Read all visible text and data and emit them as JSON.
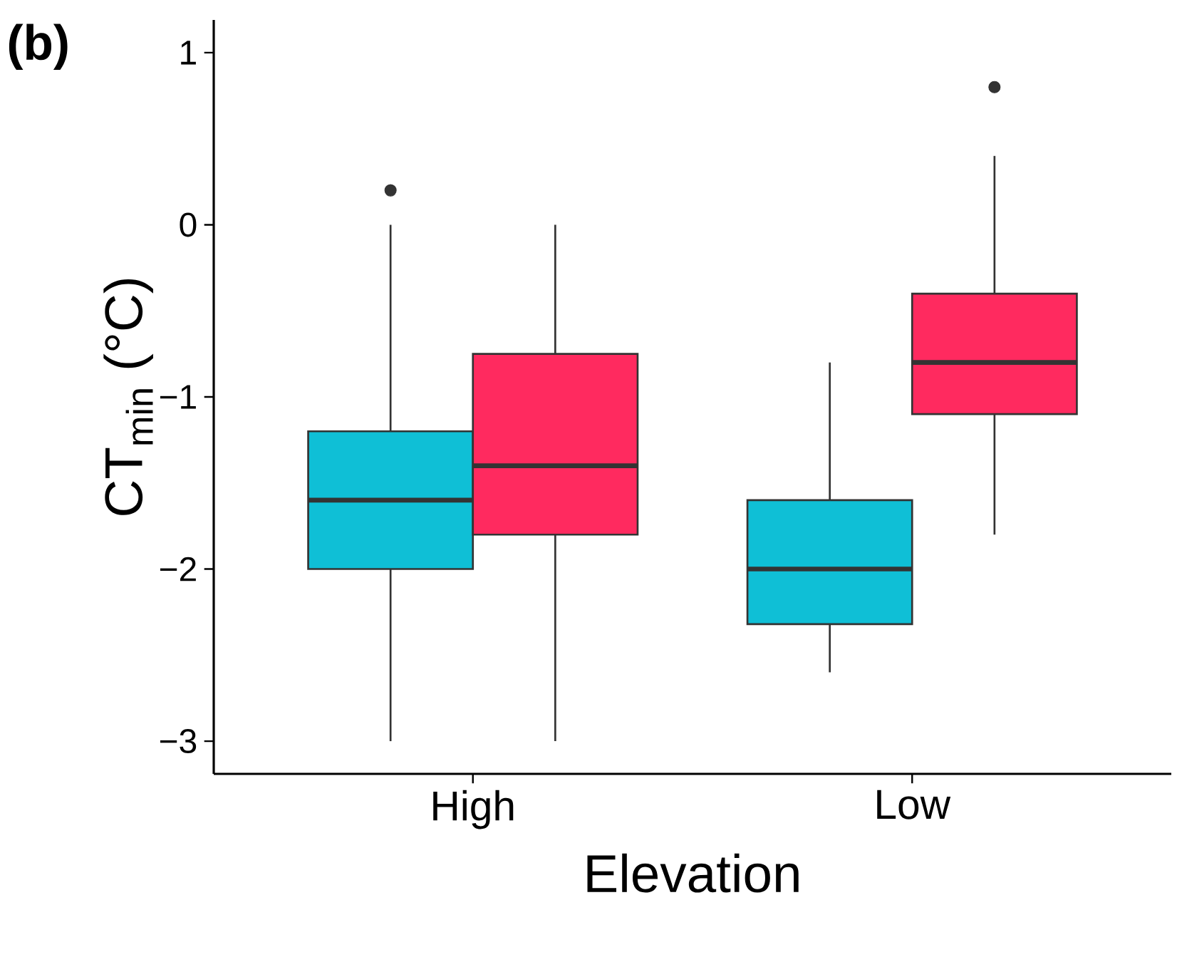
{
  "chart_data": {
    "type": "box",
    "title": "(b)",
    "xlabel": "Elevation",
    "ylabel": "CT$_{min}$ (°C)",
    "categories": [
      "High",
      "Low"
    ],
    "ylim": [
      -3.19,
      1.19
    ],
    "yticks": [
      {
        "value": -3,
        "label": "−3"
      },
      {
        "value": -2,
        "label": "−2"
      },
      {
        "value": -1,
        "label": "−1"
      },
      0,
      1
    ],
    "series": [
      {
        "color": "#0fbfd6",
        "boxes": [
          {
            "low": -3,
            "q1": -2.0,
            "median": -1.6,
            "q3": -1.2,
            "high": 0,
            "outliers": [
              0.2
            ]
          },
          {
            "low": -2.6,
            "q1": -2.32,
            "median": -2.0,
            "q3": -1.6,
            "high": -0.8
          }
        ]
      },
      {
        "color": "#ff2a5f",
        "boxes": [
          {
            "low": -3,
            "q1": -1.8,
            "median": -1.4,
            "q3": -0.75,
            "high": 0
          },
          {
            "low": -1.8,
            "q1": -1.1,
            "median": -0.8,
            "q3": -0.4,
            "high": 0.4,
            "outliers": [
              0.8
            ]
          }
        ]
      }
    ]
  }
}
